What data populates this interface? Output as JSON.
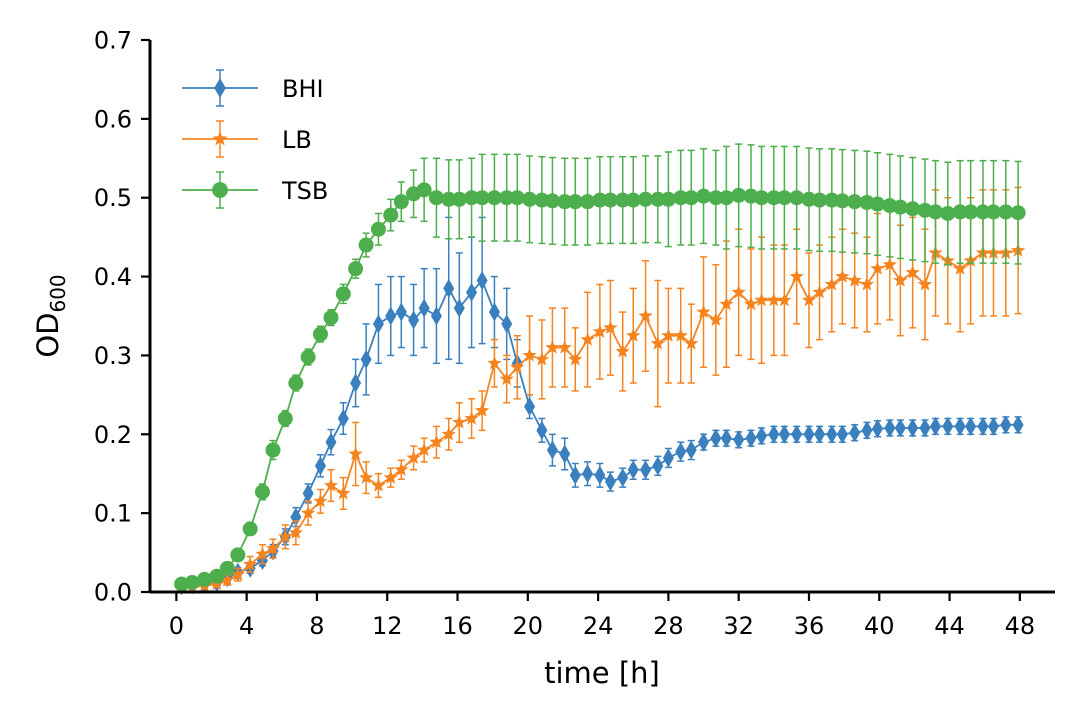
{
  "chart_data": {
    "type": "line",
    "xlabel": "time [h]",
    "ylabel_main": "OD",
    "ylabel_sub": "600",
    "xlim": [
      -1.5,
      50
    ],
    "ylim": [
      0,
      0.7
    ],
    "xticks": [
      "0",
      "4",
      "8",
      "12",
      "16",
      "20",
      "24",
      "28",
      "32",
      "36",
      "40",
      "44",
      "48"
    ],
    "yticks": [
      "0.0",
      "0.1",
      "0.2",
      "0.3",
      "0.4",
      "0.5",
      "0.6",
      "0.7"
    ],
    "legend_position": "top-left",
    "grid": false,
    "x": [
      0.3,
      0.9,
      1.6,
      2.3,
      2.9,
      3.5,
      4.2,
      4.9,
      5.5,
      6.2,
      6.8,
      7.5,
      8.2,
      8.8,
      9.5,
      10.2,
      10.8,
      11.5,
      12.2,
      12.8,
      13.5,
      14.1,
      14.8,
      15.5,
      16.1,
      16.8,
      17.4,
      18.1,
      18.8,
      19.4,
      20.1,
      20.8,
      21.4,
      22.1,
      22.7,
      23.4,
      24.1,
      24.7,
      25.4,
      26.0,
      26.7,
      27.4,
      28.0,
      28.7,
      29.3,
      30.0,
      30.7,
      31.3,
      32.0,
      32.7,
      33.3,
      34.0,
      34.6,
      35.3,
      36.0,
      36.6,
      37.3,
      37.9,
      38.6,
      39.3,
      39.9,
      40.6,
      41.2,
      41.9,
      42.6,
      43.2,
      43.9,
      44.6,
      45.2,
      45.9,
      46.5,
      47.2,
      47.9
    ],
    "series": [
      {
        "name": "BHI",
        "color": "#3a7fbe",
        "marker": "diamond",
        "values": [
          0.008,
          0.009,
          0.01,
          0.012,
          0.018,
          0.025,
          0.03,
          0.04,
          0.052,
          0.07,
          0.095,
          0.125,
          0.16,
          0.19,
          0.22,
          0.265,
          0.295,
          0.34,
          0.35,
          0.355,
          0.345,
          0.36,
          0.35,
          0.385,
          0.36,
          0.38,
          0.395,
          0.355,
          0.34,
          0.29,
          0.235,
          0.205,
          0.18,
          0.175,
          0.148,
          0.15,
          0.148,
          0.14,
          0.145,
          0.155,
          0.155,
          0.16,
          0.17,
          0.178,
          0.18,
          0.19,
          0.195,
          0.195,
          0.193,
          0.195,
          0.198,
          0.2,
          0.2,
          0.2,
          0.2,
          0.2,
          0.2,
          0.2,
          0.202,
          0.205,
          0.207,
          0.208,
          0.208,
          0.208,
          0.208,
          0.21,
          0.21,
          0.21,
          0.21,
          0.21,
          0.21,
          0.212,
          0.212
        ],
        "errors": [
          0.005,
          0.004,
          0.004,
          0.004,
          0.006,
          0.006,
          0.006,
          0.007,
          0.008,
          0.01,
          0.012,
          0.012,
          0.014,
          0.016,
          0.02,
          0.03,
          0.045,
          0.05,
          0.05,
          0.045,
          0.045,
          0.05,
          0.06,
          0.09,
          0.07,
          0.07,
          0.08,
          0.045,
          0.045,
          0.03,
          0.015,
          0.015,
          0.02,
          0.02,
          0.015,
          0.015,
          0.015,
          0.012,
          0.012,
          0.012,
          0.012,
          0.012,
          0.012,
          0.012,
          0.012,
          0.01,
          0.01,
          0.01,
          0.01,
          0.01,
          0.01,
          0.01,
          0.01,
          0.01,
          0.01,
          0.01,
          0.01,
          0.01,
          0.01,
          0.01,
          0.01,
          0.01,
          0.01,
          0.01,
          0.01,
          0.01,
          0.01,
          0.01,
          0.01,
          0.01,
          0.01,
          0.01,
          0.01
        ]
      },
      {
        "name": "LB",
        "color": "#f5841f",
        "marker": "star",
        "values": [
          0.005,
          0.006,
          0.008,
          0.01,
          0.015,
          0.022,
          0.035,
          0.048,
          0.055,
          0.07,
          0.075,
          0.1,
          0.115,
          0.135,
          0.125,
          0.175,
          0.145,
          0.135,
          0.145,
          0.155,
          0.17,
          0.18,
          0.19,
          0.2,
          0.215,
          0.22,
          0.23,
          0.29,
          0.27,
          0.285,
          0.3,
          0.295,
          0.31,
          0.31,
          0.295,
          0.32,
          0.33,
          0.335,
          0.305,
          0.325,
          0.35,
          0.315,
          0.325,
          0.325,
          0.315,
          0.355,
          0.345,
          0.365,
          0.38,
          0.365,
          0.37,
          0.37,
          0.37,
          0.4,
          0.37,
          0.38,
          0.39,
          0.4,
          0.395,
          0.39,
          0.41,
          0.415,
          0.395,
          0.405,
          0.39,
          0.43,
          0.42,
          0.41,
          0.42,
          0.43,
          0.43,
          0.43,
          0.433
        ],
        "errors": [
          0.004,
          0.004,
          0.004,
          0.004,
          0.006,
          0.008,
          0.01,
          0.012,
          0.012,
          0.015,
          0.015,
          0.015,
          0.015,
          0.02,
          0.02,
          0.04,
          0.02,
          0.015,
          0.012,
          0.012,
          0.015,
          0.015,
          0.02,
          0.02,
          0.025,
          0.025,
          0.025,
          0.03,
          0.03,
          0.04,
          0.05,
          0.05,
          0.05,
          0.05,
          0.04,
          0.06,
          0.06,
          0.06,
          0.05,
          0.06,
          0.07,
          0.08,
          0.06,
          0.06,
          0.05,
          0.07,
          0.07,
          0.08,
          0.08,
          0.07,
          0.08,
          0.07,
          0.07,
          0.06,
          0.06,
          0.06,
          0.06,
          0.06,
          0.06,
          0.06,
          0.07,
          0.07,
          0.07,
          0.07,
          0.07,
          0.08,
          0.08,
          0.08,
          0.08,
          0.08,
          0.08,
          0.08,
          0.08
        ]
      },
      {
        "name": "TSB",
        "color": "#4cae4c",
        "marker": "circle",
        "values": [
          0.01,
          0.012,
          0.016,
          0.02,
          0.03,
          0.047,
          0.08,
          0.127,
          0.18,
          0.22,
          0.265,
          0.298,
          0.327,
          0.348,
          0.378,
          0.41,
          0.44,
          0.46,
          0.478,
          0.495,
          0.505,
          0.51,
          0.5,
          0.498,
          0.498,
          0.5,
          0.5,
          0.5,
          0.5,
          0.5,
          0.498,
          0.497,
          0.496,
          0.495,
          0.495,
          0.495,
          0.497,
          0.497,
          0.497,
          0.497,
          0.498,
          0.498,
          0.498,
          0.5,
          0.5,
          0.502,
          0.5,
          0.5,
          0.503,
          0.502,
          0.5,
          0.5,
          0.5,
          0.5,
          0.498,
          0.497,
          0.497,
          0.496,
          0.495,
          0.494,
          0.492,
          0.49,
          0.488,
          0.486,
          0.484,
          0.482,
          0.48,
          0.482,
          0.482,
          0.482,
          0.482,
          0.482,
          0.481
        ],
        "errors": [
          0.004,
          0.004,
          0.004,
          0.004,
          0.005,
          0.006,
          0.008,
          0.01,
          0.012,
          0.01,
          0.01,
          0.01,
          0.01,
          0.01,
          0.012,
          0.012,
          0.015,
          0.02,
          0.02,
          0.025,
          0.03,
          0.04,
          0.05,
          0.05,
          0.05,
          0.05,
          0.055,
          0.055,
          0.055,
          0.055,
          0.055,
          0.055,
          0.055,
          0.055,
          0.055,
          0.055,
          0.055,
          0.055,
          0.055,
          0.055,
          0.055,
          0.055,
          0.06,
          0.06,
          0.06,
          0.06,
          0.06,
          0.065,
          0.065,
          0.065,
          0.065,
          0.065,
          0.065,
          0.065,
          0.065,
          0.065,
          0.065,
          0.065,
          0.065,
          0.065,
          0.065,
          0.065,
          0.065,
          0.065,
          0.065,
          0.065,
          0.065,
          0.065,
          0.065,
          0.065,
          0.065,
          0.065,
          0.065
        ]
      }
    ]
  }
}
